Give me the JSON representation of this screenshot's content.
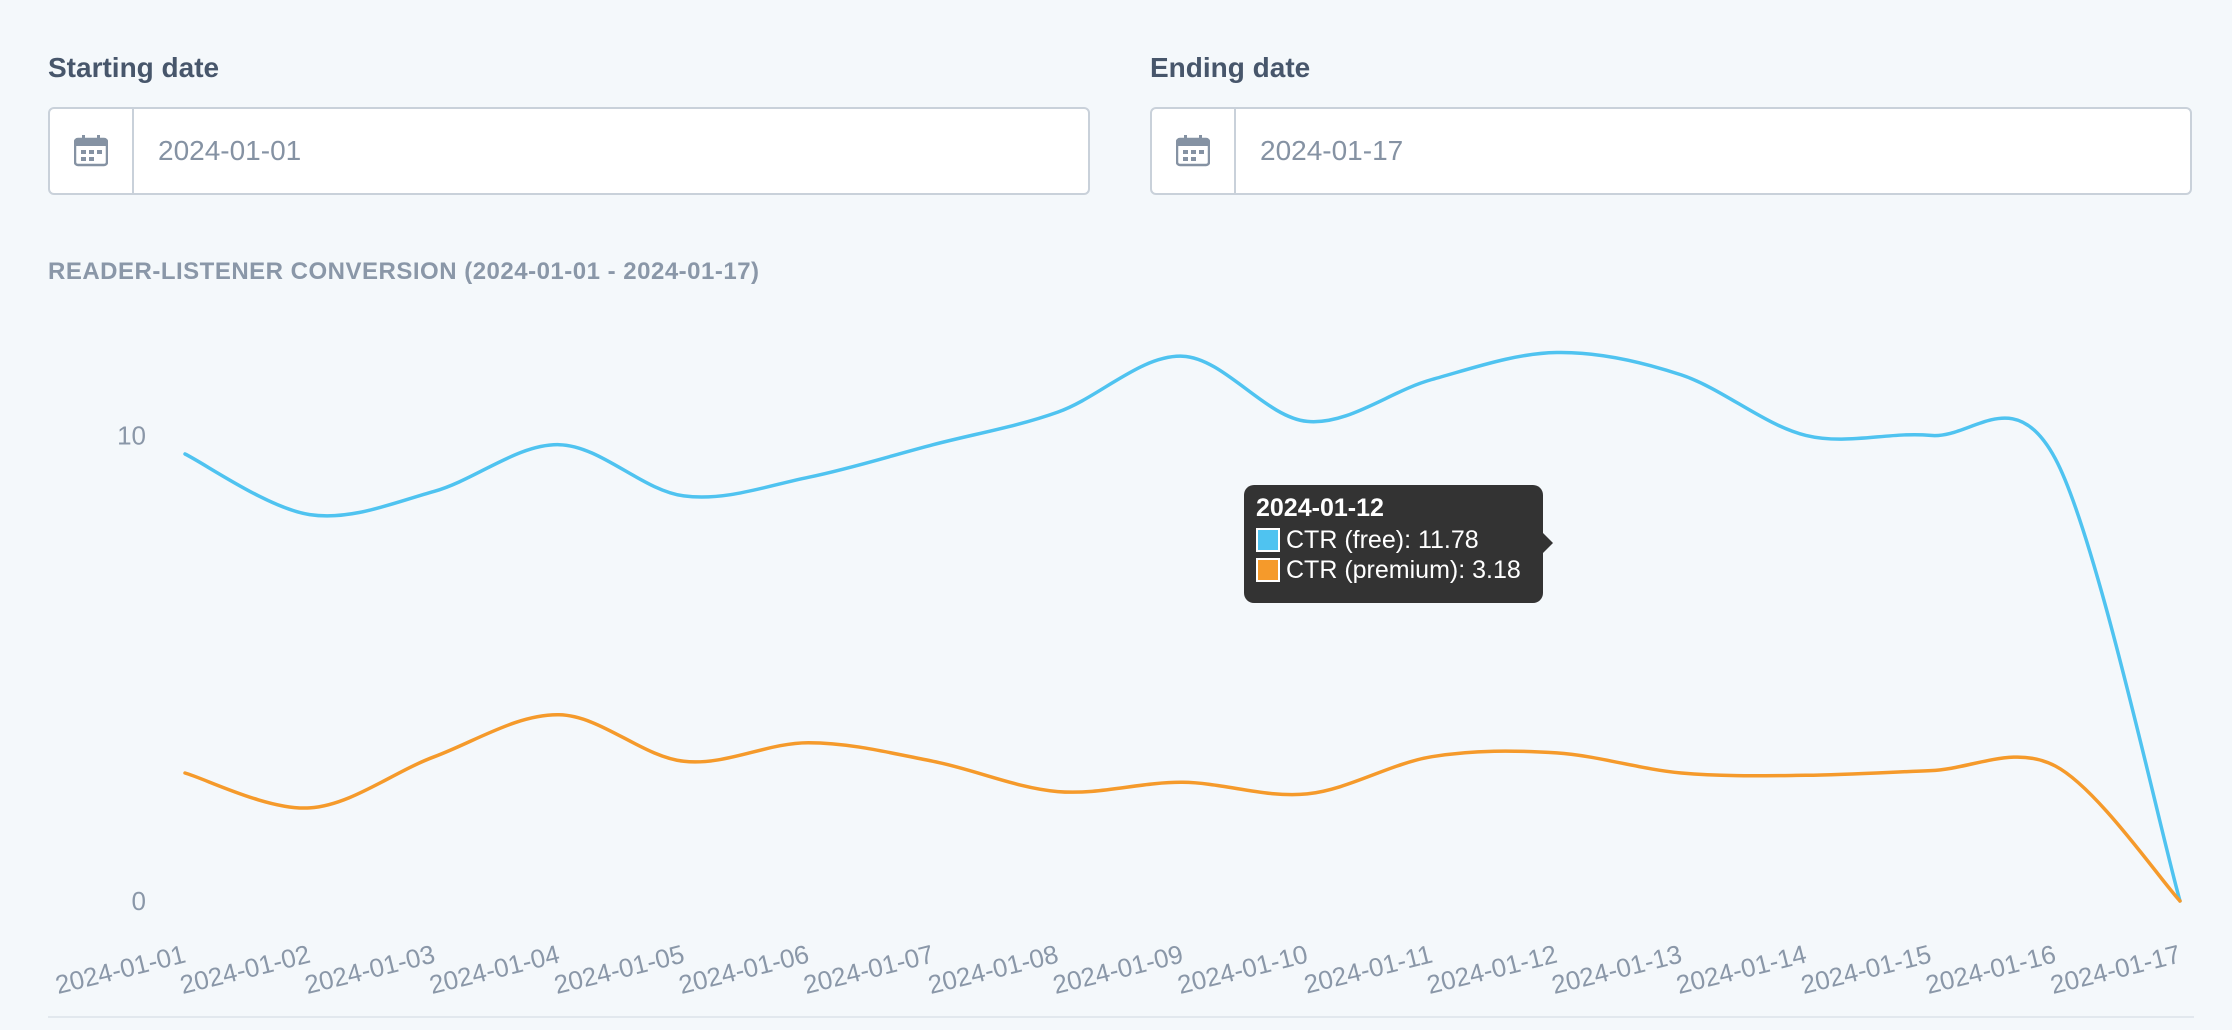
{
  "filters": {
    "start": {
      "label": "Starting date",
      "value": "2024-01-01"
    },
    "end": {
      "label": "Ending date",
      "value": "2024-01-17"
    }
  },
  "tooltip": {
    "date": "2024-01-12",
    "rows": [
      {
        "series": "CTR (free)",
        "value": "11.78"
      },
      {
        "series": "CTR (premium)",
        "value": "3.18"
      }
    ]
  },
  "colors": {
    "free": "#4fc3f0",
    "premium": "#f59a2b",
    "tick_text": "#8a97a8"
  },
  "chart_data": {
    "type": "line",
    "title": "READER-LISTENER CONVERSION (2024-01-01 - 2024-01-17)",
    "x": [
      "2024-01-01",
      "2024-01-02",
      "2024-01-03",
      "2024-01-04",
      "2024-01-05",
      "2024-01-06",
      "2024-01-07",
      "2024-01-08",
      "2024-01-09",
      "2024-01-10",
      "2024-01-11",
      "2024-01-12",
      "2024-01-13",
      "2024-01-14",
      "2024-01-15",
      "2024-01-16",
      "2024-01-17"
    ],
    "series": [
      {
        "name": "CTR (free)",
        "values": [
          9.6,
          8.3,
          8.8,
          9.8,
          8.7,
          9.1,
          9.8,
          10.5,
          11.7,
          10.3,
          11.2,
          11.78,
          11.3,
          10.0,
          10.0,
          9.5,
          0
        ]
      },
      {
        "name": "CTR (premium)",
        "values": [
          2.75,
          2.0,
          3.1,
          4.0,
          3.0,
          3.4,
          3.0,
          2.35,
          2.55,
          2.3,
          3.1,
          3.18,
          2.75,
          2.7,
          2.8,
          2.9,
          0
        ]
      }
    ],
    "yticks": [
      0,
      10
    ],
    "ylim": [
      0,
      12.5
    ],
    "grid": false,
    "legend": "none"
  }
}
